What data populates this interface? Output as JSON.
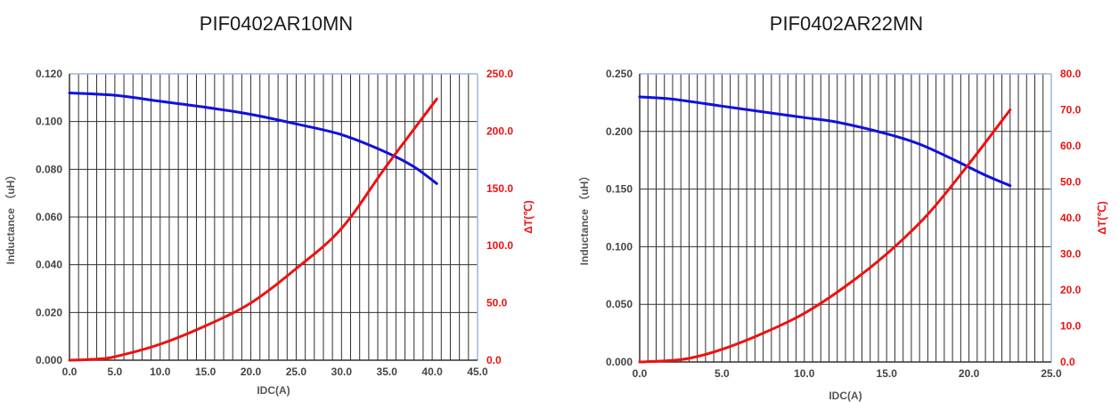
{
  "chart_data": [
    {
      "type": "line",
      "title": "PIF0402AR10MN",
      "xlabel": "IDC(A)",
      "ylabel": "Inductance （uH）",
      "y2label": "ΔT(℃)",
      "xlim": [
        0,
        45
      ],
      "ylim": [
        0,
        0.12
      ],
      "y2lim": [
        0,
        250
      ],
      "x_ticks": [
        "0.0",
        "5.0",
        "10.0",
        "15.0",
        "20.0",
        "25.0",
        "30.0",
        "35.0",
        "40.0",
        "45.0"
      ],
      "y_ticks": [
        "0.000",
        "0.020",
        "0.040",
        "0.060",
        "0.080",
        "0.100",
        "0.120"
      ],
      "y2_ticks": [
        "0.0",
        "50.0",
        "100.0",
        "150.0",
        "200.0",
        "250.0"
      ],
      "grid": true,
      "colors": {
        "inductance": "#1010e0",
        "temperature": "#ee1111",
        "y2_axis": "#ee1111"
      },
      "series": [
        {
          "axis": "left",
          "color": "#1010e0",
          "x": [
            0,
            5,
            10,
            15,
            20,
            25,
            30,
            35,
            38,
            40.5
          ],
          "y": [
            0.112,
            0.111,
            0.1085,
            0.106,
            0.103,
            0.099,
            0.0945,
            0.087,
            0.081,
            0.074
          ]
        },
        {
          "axis": "right",
          "color": "#ee1111",
          "x": [
            0,
            3,
            5,
            10,
            15,
            20,
            25,
            30,
            35,
            40.5
          ],
          "y": [
            0,
            1,
            3,
            14,
            30,
            50,
            80,
            115,
            170,
            228
          ]
        }
      ]
    },
    {
      "type": "line",
      "title": "PIF0402AR22MN",
      "xlabel": "IDC(A)",
      "ylabel": "Inductance （uH）",
      "y2label": "ΔT(℃)",
      "xlim": [
        0,
        25
      ],
      "ylim": [
        0,
        0.25
      ],
      "y2lim": [
        0,
        80
      ],
      "x_ticks": [
        "0.0",
        "5.0",
        "10.0",
        "15.0",
        "20.0",
        "25.0"
      ],
      "y_ticks": [
        "0.000",
        "0.050",
        "0.100",
        "0.150",
        "0.200",
        "0.250"
      ],
      "y2_ticks": [
        "0.0",
        "10.0",
        "20.0",
        "30.0",
        "40.0",
        "50.0",
        "60.0",
        "70.0",
        "80.0"
      ],
      "grid": true,
      "colors": {
        "inductance": "#1010e0",
        "temperature": "#ee1111",
        "y2_axis": "#ee1111"
      },
      "series": [
        {
          "axis": "left",
          "color": "#1010e0",
          "x": [
            0,
            2,
            5,
            8,
            10,
            12,
            15,
            17,
            19,
            21,
            22.5
          ],
          "y": [
            0.23,
            0.228,
            0.222,
            0.216,
            0.212,
            0.208,
            0.198,
            0.189,
            0.176,
            0.162,
            0.153
          ]
        },
        {
          "axis": "right",
          "color": "#ee1111",
          "x": [
            0,
            1.5,
            3,
            5,
            7.5,
            10,
            12.5,
            15,
            17.5,
            20,
            22.5
          ],
          "y": [
            0,
            0.3,
            1,
            3.5,
            8,
            13.5,
            21,
            30,
            41,
            55,
            70
          ]
        }
      ]
    }
  ]
}
